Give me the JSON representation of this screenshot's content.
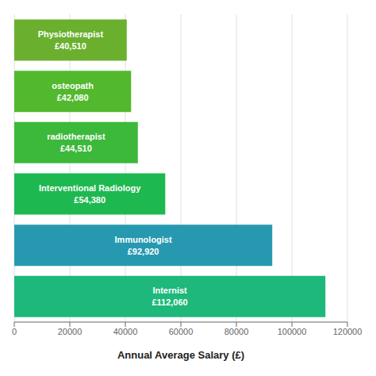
{
  "chart_data": {
    "type": "bar",
    "orientation": "horizontal",
    "categories": [
      "Physiotherapist\n£40,510",
      "osteopath\n£42,080",
      "radiotherapist\n£44,510",
      "Interventional Radiology\n£54,380",
      "Immunologist\n£92,920",
      "Internist\n£112,060"
    ],
    "values": [
      40510,
      42080,
      44510,
      54380,
      92920,
      112060
    ],
    "colors": [
      "#6ab02e",
      "#52b82e",
      "#3cb83a",
      "#1eb850",
      "#2699b0",
      "#1db87a"
    ],
    "xlabel": "Annual Average Salary (£)",
    "xlim": [
      0,
      120000
    ],
    "xticks": [
      0,
      20000,
      40000,
      60000,
      80000,
      100000,
      120000
    ],
    "grid": true,
    "tick_labels": "x"
  }
}
